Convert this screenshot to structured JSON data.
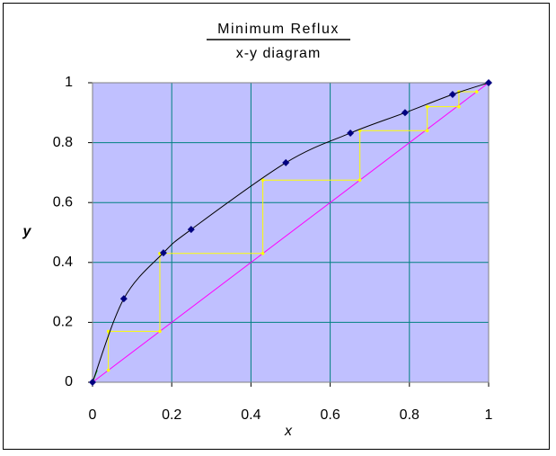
{
  "chart_data": {
    "type": "scatter",
    "title": "Minimum Reflux",
    "subtitle": "x-y diagram",
    "x_label": "x",
    "y_label": "y",
    "xlim": [
      0,
      1
    ],
    "ylim": [
      0,
      1
    ],
    "xticks": [
      0,
      0.2,
      0.4,
      0.6,
      0.8,
      1
    ],
    "yticks": [
      0,
      0.2,
      0.4,
      0.6,
      0.8,
      1
    ],
    "grid": true,
    "plot_color": "#c0c0ff",
    "grid_color": "#008080",
    "series": [
      {
        "color": "#ff00ff",
        "line": "straight",
        "marker": "none",
        "x": [
          0,
          1
        ],
        "y": [
          0,
          1
        ]
      },
      {
        "color": "#ffff00",
        "line": "straight",
        "marker": "dot",
        "x": [
          0.04,
          0.04,
          0.17,
          0.17,
          0.43,
          0.43,
          0.675,
          0.675,
          0.845,
          0.845,
          0.925,
          0.925,
          0.97
        ],
        "y": [
          0.04,
          0.17,
          0.17,
          0.43,
          0.43,
          0.675,
          0.675,
          0.84,
          0.84,
          0.92,
          0.92,
          0.97,
          0.97
        ]
      },
      {
        "color": "#00c000",
        "line": "straight",
        "marker": "none",
        "x": [
          0,
          0.012
        ],
        "y": [
          0,
          0.04
        ]
      },
      {
        "color": "#000000",
        "line": "smooth",
        "marker": "diamond",
        "marker_color": "#000080",
        "x": [
          0,
          0.079,
          0.179,
          0.249,
          0.488,
          0.651,
          0.789,
          0.909,
          1
        ],
        "y": [
          0,
          0.279,
          0.432,
          0.51,
          0.733,
          0.832,
          0.9,
          0.961,
          1
        ]
      }
    ]
  }
}
